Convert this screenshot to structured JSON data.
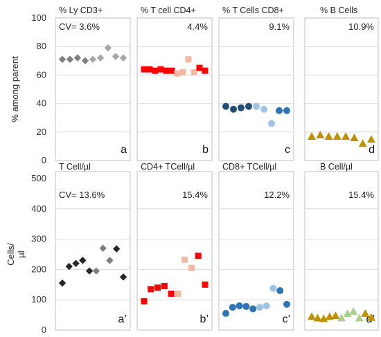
{
  "chart_data": [
    {
      "type": "scatter",
      "panel": "a",
      "title": "% Ly CD3+",
      "cv": "CV= 3.6%",
      "ylabel": "% among parent",
      "ylim": [
        0,
        100
      ],
      "yticks": [
        "0",
        "20",
        "40",
        "60",
        "80",
        "100"
      ],
      "marker": "diamond",
      "series": [
        {
          "color": "#7f7f7f",
          "values": [
            71,
            71,
            72,
            70
          ]
        },
        {
          "color": "#a6a6a6",
          "values": [
            71,
            72,
            79,
            73,
            72
          ]
        }
      ]
    },
    {
      "type": "scatter",
      "panel": "b",
      "title": "% T cell CD4+",
      "cv": "4.4%",
      "ylim": [
        0,
        100
      ],
      "marker": "square",
      "series": [
        {
          "color": "#ff0000",
          "values": [
            64,
            64,
            63,
            64,
            63,
            63
          ]
        },
        {
          "color": "#f4b9a3",
          "values": [
            61,
            62,
            71,
            62
          ]
        },
        {
          "color": "#ff0000",
          "values": [
            65,
            63
          ]
        }
      ]
    },
    {
      "type": "scatter",
      "panel": "c",
      "title": "% T Cells CD8+",
      "cv": "9.1%",
      "ylim": [
        0,
        100
      ],
      "marker": "circle",
      "series": [
        {
          "color": "#1f4e79",
          "values": [
            38,
            36,
            37,
            38
          ]
        },
        {
          "color": "#9dc3e6",
          "values": [
            38,
            36,
            26
          ]
        },
        {
          "color": "#2e75b6",
          "values": [
            35,
            35
          ]
        }
      ]
    },
    {
      "type": "scatter",
      "panel": "d",
      "title": "% B Cells",
      "cv": "10.9%",
      "ylim": [
        0,
        100
      ],
      "marker": "triangle",
      "series": [
        {
          "color": "#bf9000",
          "values": [
            17,
            18,
            17,
            17,
            17,
            16,
            12,
            15
          ]
        }
      ]
    },
    {
      "type": "scatter",
      "panel": "a’",
      "title": "T Cell/µl",
      "cv": "CV= 13.6%",
      "ylabel": "Cells/ µl",
      "ylim": [
        0,
        500
      ],
      "yticks": [
        "0",
        "100",
        "200",
        "300",
        "400",
        "500"
      ],
      "marker": "diamond",
      "series": [
        {
          "color": "#262626",
          "values": [
            155,
            210,
            220,
            230,
            195
          ]
        },
        {
          "color": "#7f7f7f",
          "values": [
            195,
            270,
            230
          ]
        },
        {
          "color": "#262626",
          "values": [
            268,
            175
          ]
        }
      ]
    },
    {
      "type": "scatter",
      "panel": "b’",
      "title": "CD4+ TCell/µl",
      "cv": "15.4%",
      "ylim": [
        0,
        500
      ],
      "marker": "square",
      "series": [
        {
          "color": "#ff0000",
          "values": [
            95,
            135,
            140,
            145,
            120
          ]
        },
        {
          "color": "#f4b9a3",
          "values": [
            120,
            232,
            205
          ]
        },
        {
          "color": "#ff0000",
          "values": [
            245,
            150
          ]
        }
      ]
    },
    {
      "type": "scatter",
      "panel": "c’",
      "title": "CD8+ TCell/µl",
      "cv": "12.2%",
      "ylim": [
        0,
        500
      ],
      "marker": "circle",
      "series": [
        {
          "color": "#2e75b6",
          "values": [
            55,
            75,
            80,
            78,
            70
          ]
        },
        {
          "color": "#9dc3e6",
          "values": [
            75,
            80,
            138
          ]
        },
        {
          "color": "#2e75b6",
          "values": [
            130,
            85
          ]
        }
      ]
    },
    {
      "type": "scatter",
      "panel": "d’",
      "title": "B Cell/µl",
      "cv": "15.4%",
      "ylim": [
        0,
        500
      ],
      "marker": "triangle",
      "series": [
        {
          "color": "#bf9000",
          "values": [
            45,
            40,
            38,
            45,
            48
          ]
        },
        {
          "color": "#a9d18e",
          "values": [
            40,
            55,
            62,
            40
          ]
        },
        {
          "color": "#bf9000",
          "values": [
            55,
            42
          ]
        }
      ]
    }
  ]
}
